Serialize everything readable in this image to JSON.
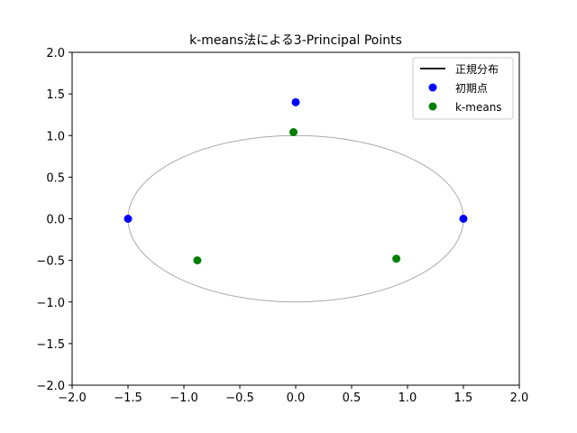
{
  "chart_data": {
    "type": "scatter",
    "title": "k-means法による3-Principal Points",
    "xlabel": "",
    "ylabel": "",
    "xlim": [
      -2.0,
      2.0
    ],
    "ylim": [
      -2.0,
      2.0
    ],
    "xticks": [
      -2.0,
      -1.5,
      -1.0,
      -0.5,
      0.0,
      0.5,
      1.0,
      1.5,
      2.0
    ],
    "yticks": [
      -2.0,
      -1.5,
      -1.0,
      -0.5,
      0.0,
      0.5,
      1.0,
      1.5,
      2.0
    ],
    "xtick_labels": [
      "−2.0",
      "−1.5",
      "−1.0",
      "−0.5",
      "0.0",
      "0.5",
      "1.0",
      "1.5",
      "2.0"
    ],
    "ytick_labels": [
      "−2.0",
      "−1.5",
      "−1.0",
      "−0.5",
      "0.0",
      "0.5",
      "1.0",
      "1.5",
      "2.0"
    ],
    "grid": false,
    "legend_position": "top-right",
    "ellipse": {
      "cx": 0.0,
      "cy": 0.0,
      "rx": 1.5,
      "ry": 1.0,
      "color": "#aaaaaa"
    },
    "series": [
      {
        "name": "正規分布",
        "kind": "line",
        "color": "#000000"
      },
      {
        "name": "初期点",
        "kind": "scatter",
        "color": "#0000ff",
        "x": [
          0.0,
          -1.5,
          1.5
        ],
        "y": [
          1.4,
          0.0,
          0.0
        ]
      },
      {
        "name": "k-means",
        "kind": "scatter",
        "color": "#008000",
        "x": [
          -0.02,
          -0.88,
          0.9
        ],
        "y": [
          1.04,
          -0.5,
          -0.48
        ]
      }
    ]
  }
}
